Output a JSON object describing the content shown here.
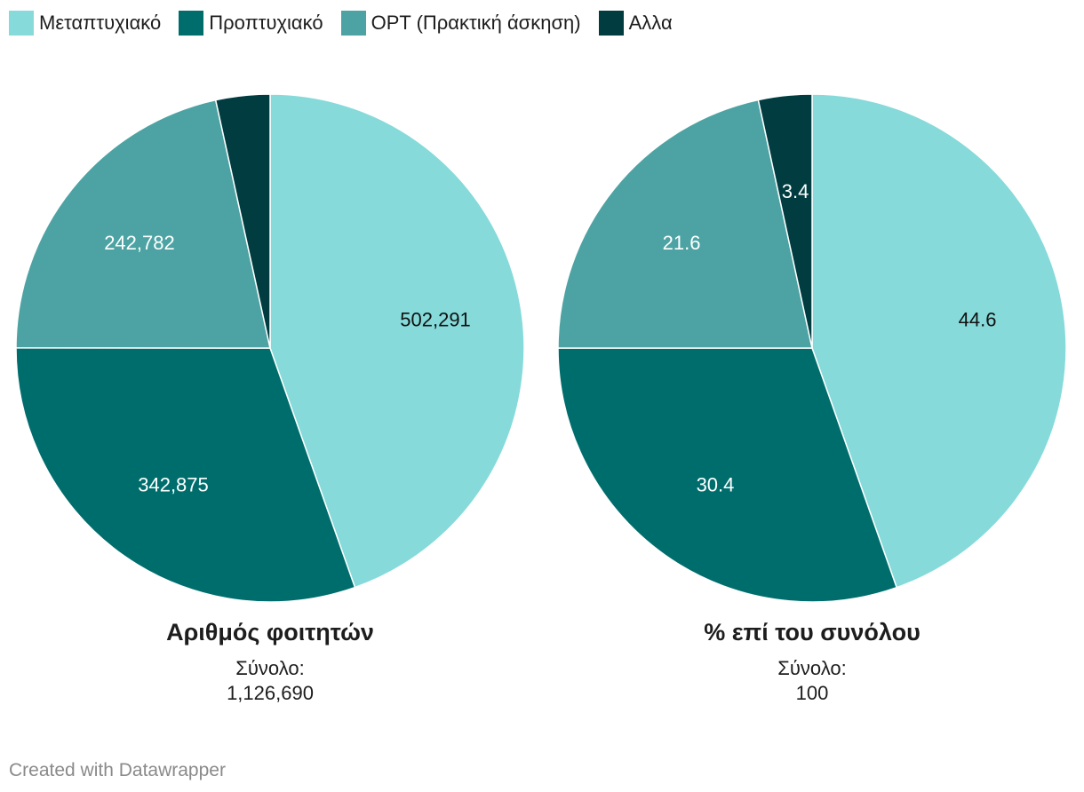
{
  "legend": [
    {
      "label": "Μεταπτυχιακό",
      "color": "#86dada"
    },
    {
      "label": "Προπτυχιακό",
      "color": "#006d6d"
    },
    {
      "label": "OPT (Πρακτική άσκηση)",
      "color": "#4da3a3"
    },
    {
      "label": "Αλλα",
      "color": "#003c40"
    }
  ],
  "chart_data": [
    {
      "type": "pie",
      "title": "Αριθμός φοιτητών",
      "total_label": "Σύνολο:",
      "total_value": "1,126,690",
      "slices": [
        {
          "name": "Μεταπτυχιακό",
          "value": 502291,
          "label": "502,291"
        },
        {
          "name": "Προπτυχιακό",
          "value": 342875,
          "label": "342,875"
        },
        {
          "name": "OPT (Πρακτική άσκηση)",
          "value": 242782,
          "label": "242,782"
        },
        {
          "name": "Αλλα",
          "value": 38742,
          "label": ""
        }
      ]
    },
    {
      "type": "pie",
      "title": "% επί του συνόλου",
      "total_label": "Σύνολο:",
      "total_value": "100",
      "slices": [
        {
          "name": "Μεταπτυχιακό",
          "value": 44.6,
          "label": "44.6"
        },
        {
          "name": "Προπτυχιακό",
          "value": 30.4,
          "label": "30.4"
        },
        {
          "name": "OPT (Πρακτική άσκηση)",
          "value": 21.6,
          "label": "21.6"
        },
        {
          "name": "Αλλα",
          "value": 3.4,
          "label": "3.4"
        }
      ]
    }
  ],
  "footer": {
    "credit": "Created with Datawrapper"
  }
}
